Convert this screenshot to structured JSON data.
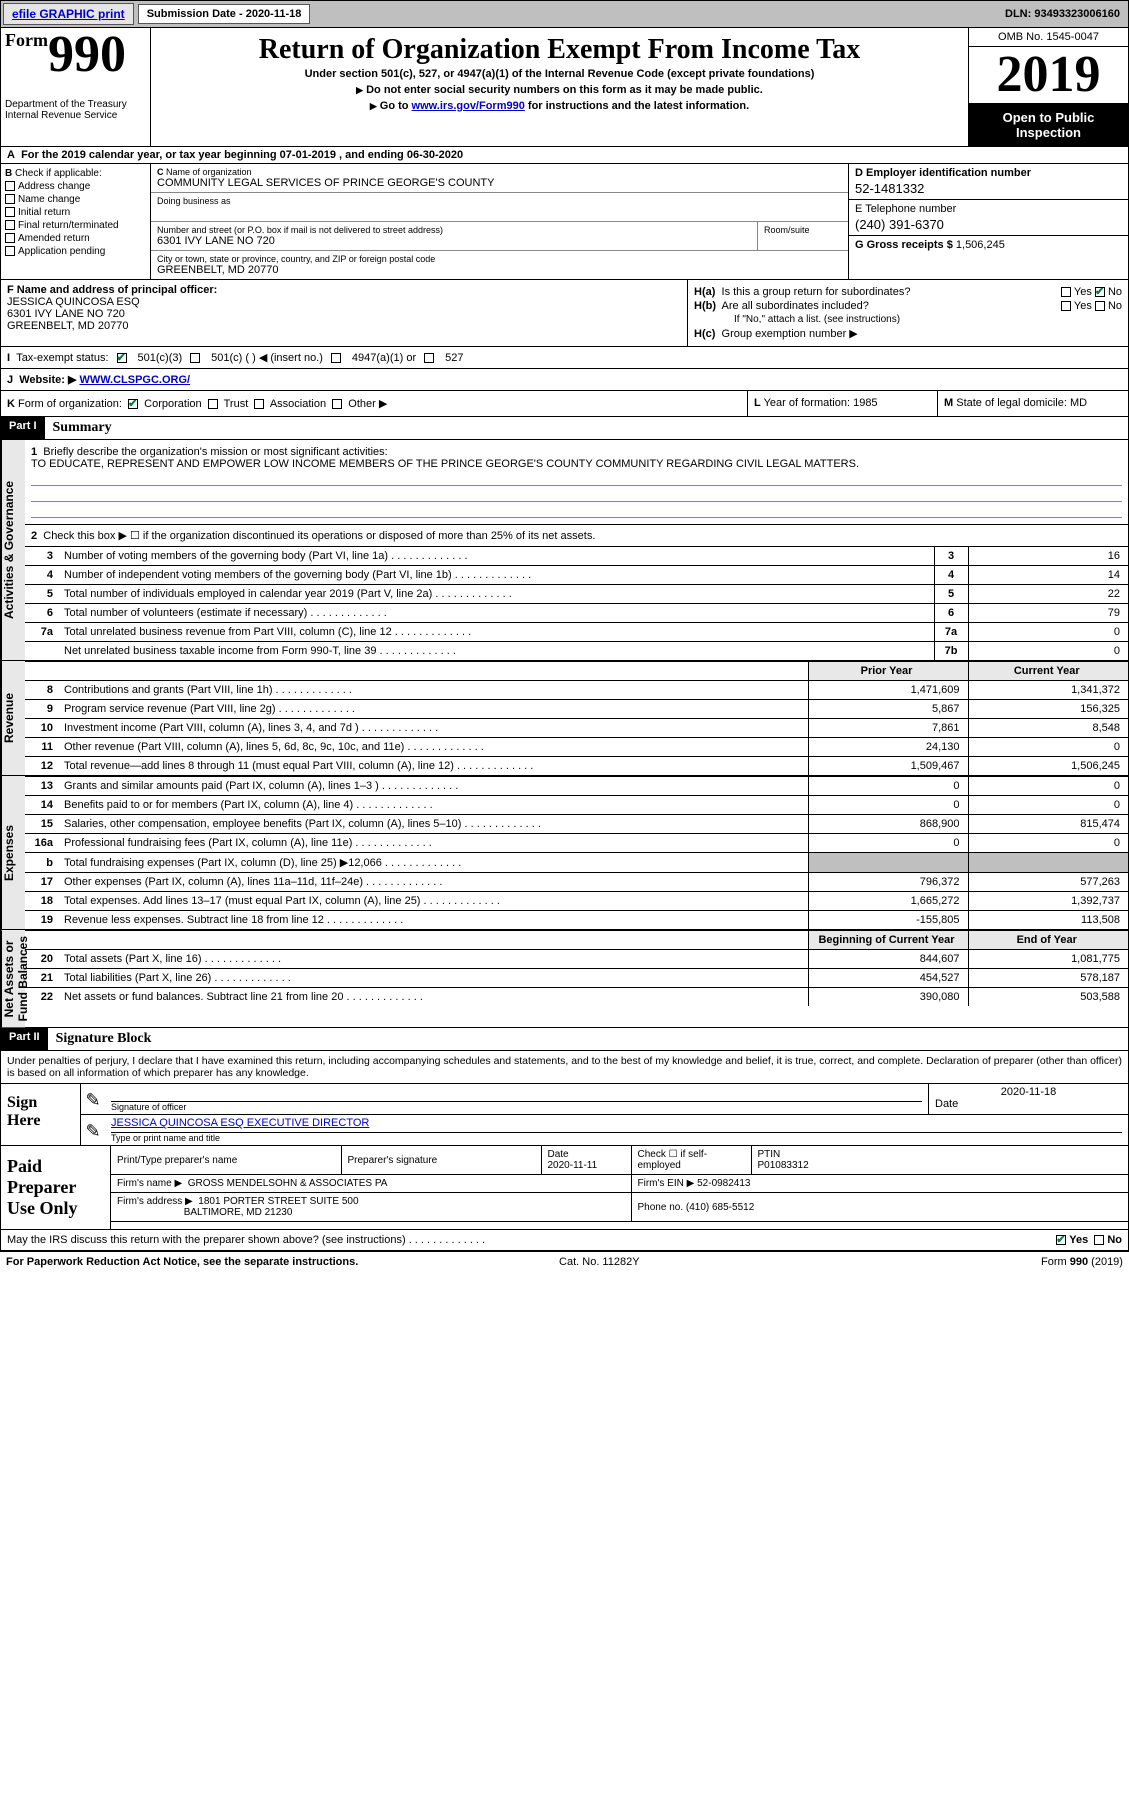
{
  "topbar": {
    "efile": "efile GRAPHIC print",
    "submission_label": "Submission Date - 2020-11-18",
    "dln": "DLN: 93493323006160"
  },
  "header": {
    "form_word": "Form",
    "form_num": "990",
    "dept": "Department of the Treasury\nInternal Revenue Service",
    "title": "Return of Organization Exempt From Income Tax",
    "sub": "Under section 501(c), 527, or 4947(a)(1) of the Internal Revenue Code (except private foundations)",
    "line1": "Do not enter social security numbers on this form as it may be made public.",
    "line2_pre": "Go to ",
    "line2_link": "www.irs.gov/Form990",
    "line2_post": " for instructions and the latest information.",
    "omb": "OMB No. 1545-0047",
    "year": "2019",
    "open": "Open to Public Inspection"
  },
  "tax_year": "For the 2019 calendar year, or tax year beginning 07-01-2019   , and ending 06-30-2020",
  "checkB": {
    "label": "Check if applicable:",
    "addr": "Address change",
    "name": "Name change",
    "init": "Initial return",
    "final": "Final return/terminated",
    "amend": "Amended return",
    "app": "Application pending"
  },
  "org": {
    "c_label": "Name of organization",
    "name": "COMMUNITY LEGAL SERVICES OF PRINCE GEORGE'S COUNTY",
    "dba_label": "Doing business as",
    "addr_label": "Number and street (or P.O. box if mail is not delivered to street address)",
    "addr": "6301 IVY LANE NO 720",
    "room_label": "Room/suite",
    "city_label": "City or town, state or province, country, and ZIP or foreign postal code",
    "city": "GREENBELT, MD  20770"
  },
  "boxDEG": {
    "d_label": "D Employer identification number",
    "ein": "52-1481332",
    "e_label": "E Telephone number",
    "phone": "(240) 391-6370",
    "g_label": "G Gross receipts $ ",
    "gross": "1,506,245"
  },
  "boxF": {
    "label": "F  Name and address of principal officer:",
    "name": "JESSICA QUINCOSA ESQ",
    "addr1": "6301 IVY LANE NO 720",
    "addr2": "GREENBELT, MD  20770"
  },
  "boxH": {
    "ha": "Is this a group return for subordinates?",
    "hb": "Are all subordinates included?",
    "hnote": "If \"No,\" attach a list. (see instructions)",
    "hc": "Group exemption number ▶",
    "yes": "Yes",
    "no": "No"
  },
  "status": {
    "label": "Tax-exempt status:",
    "c3": "501(c)(3)",
    "c": "501(c) (  ) ◀ (insert no.)",
    "a1": "4947(a)(1) or",
    "s527": "527"
  },
  "website": {
    "label": "Website: ▶ ",
    "url": "WWW.CLSPGC.ORG/"
  },
  "klm": {
    "k": "Form of organization:",
    "corp": "Corporation",
    "trust": "Trust",
    "assoc": "Association",
    "other": "Other ▶",
    "l_label": "Year of formation: ",
    "l_val": "1985",
    "m_label": "State of legal domicile: ",
    "m_val": "MD"
  },
  "parts": {
    "p1": "Part I",
    "p1_title": "Summary",
    "p2": "Part II",
    "p2_title": "Signature Block"
  },
  "vtabs": {
    "ag": "Activities & Governance",
    "rev": "Revenue",
    "exp": "Expenses",
    "na": "Net Assets or\nFund Balances"
  },
  "summary": {
    "q1": "Briefly describe the organization's mission or most significant activities:",
    "mission": "TO EDUCATE, REPRESENT AND EMPOWER LOW INCOME MEMBERS OF THE PRINCE GEORGE'S COUNTY COMMUNITY REGARDING CIVIL LEGAL MATTERS.",
    "q2": "Check this box ▶ ☐  if the organization discontinued its operations or disposed of more than 25% of its net assets.",
    "prior": "Prior Year",
    "current": "Current Year",
    "begin": "Beginning of Current Year",
    "end": "End of Year",
    "rows_ag": [
      {
        "n": "3",
        "t": "Number of voting members of the governing body (Part VI, line 1a)",
        "b": "3",
        "v": "16"
      },
      {
        "n": "4",
        "t": "Number of independent voting members of the governing body (Part VI, line 1b)",
        "b": "4",
        "v": "14"
      },
      {
        "n": "5",
        "t": "Total number of individuals employed in calendar year 2019 (Part V, line 2a)",
        "b": "5",
        "v": "22"
      },
      {
        "n": "6",
        "t": "Total number of volunteers (estimate if necessary)",
        "b": "6",
        "v": "79"
      },
      {
        "n": "7a",
        "t": "Total unrelated business revenue from Part VIII, column (C), line 12",
        "b": "7a",
        "v": "0"
      },
      {
        "n": "",
        "t": "Net unrelated business taxable income from Form 990-T, line 39",
        "b": "7b",
        "v": "0"
      }
    ],
    "rows_rev": [
      {
        "n": "8",
        "t": "Contributions and grants (Part VIII, line 1h)",
        "p": "1,471,609",
        "c": "1,341,372"
      },
      {
        "n": "9",
        "t": "Program service revenue (Part VIII, line 2g)",
        "p": "5,867",
        "c": "156,325"
      },
      {
        "n": "10",
        "t": "Investment income (Part VIII, column (A), lines 3, 4, and 7d )",
        "p": "7,861",
        "c": "8,548"
      },
      {
        "n": "11",
        "t": "Other revenue (Part VIII, column (A), lines 5, 6d, 8c, 9c, 10c, and 11e)",
        "p": "24,130",
        "c": "0"
      },
      {
        "n": "12",
        "t": "Total revenue—add lines 8 through 11 (must equal Part VIII, column (A), line 12)",
        "p": "1,509,467",
        "c": "1,506,245"
      }
    ],
    "rows_exp": [
      {
        "n": "13",
        "t": "Grants and similar amounts paid (Part IX, column (A), lines 1–3 )",
        "p": "0",
        "c": "0"
      },
      {
        "n": "14",
        "t": "Benefits paid to or for members (Part IX, column (A), line 4)",
        "p": "0",
        "c": "0"
      },
      {
        "n": "15",
        "t": "Salaries, other compensation, employee benefits (Part IX, column (A), lines 5–10)",
        "p": "868,900",
        "c": "815,474"
      },
      {
        "n": "16a",
        "t": "Professional fundraising fees (Part IX, column (A), line 11e)",
        "p": "0",
        "c": "0"
      },
      {
        "n": "b",
        "t": "Total fundraising expenses (Part IX, column (D), line 25) ▶12,066",
        "p": "",
        "c": "",
        "shaded": true
      },
      {
        "n": "17",
        "t": "Other expenses (Part IX, column (A), lines 11a–11d, 11f–24e)",
        "p": "796,372",
        "c": "577,263"
      },
      {
        "n": "18",
        "t": "Total expenses. Add lines 13–17 (must equal Part IX, column (A), line 25)",
        "p": "1,665,272",
        "c": "1,392,737"
      },
      {
        "n": "19",
        "t": "Revenue less expenses. Subtract line 18 from line 12",
        "p": "-155,805",
        "c": "113,508"
      }
    ],
    "rows_na": [
      {
        "n": "20",
        "t": "Total assets (Part X, line 16)",
        "p": "844,607",
        "c": "1,081,775"
      },
      {
        "n": "21",
        "t": "Total liabilities (Part X, line 26)",
        "p": "454,527",
        "c": "578,187"
      },
      {
        "n": "22",
        "t": "Net assets or fund balances. Subtract line 21 from line 20",
        "p": "390,080",
        "c": "503,588"
      }
    ]
  },
  "sig": {
    "intro": "Under penalties of perjury, I declare that I have examined this return, including accompanying schedules and statements, and to the best of my knowledge and belief, it is true, correct, and complete. Declaration of preparer (other than officer) is based on all information of which preparer has any knowledge.",
    "sign_here": "Sign Here",
    "sig_of_officer": "Signature of officer",
    "date_label": "Date",
    "sig_date": "2020-11-18",
    "officer_name": "JESSICA QUINCOSA ESQ  EXECUTIVE DIRECTOR",
    "type_name": "Type or print name and title"
  },
  "preparer": {
    "title": "Paid Preparer Use Only",
    "h_name": "Print/Type preparer's name",
    "h_sig": "Preparer's signature",
    "h_date": "Date",
    "date": "2020-11-11",
    "check": "Check ☐ if self-employed",
    "ptin_label": "PTIN",
    "ptin": "P01083312",
    "firm_name_label": "Firm's name    ▶",
    "firm_name": "GROSS MENDELSOHN & ASSOCIATES PA",
    "firm_ein_label": "Firm's EIN ▶ ",
    "firm_ein": "52-0982413",
    "firm_addr_label": "Firm's address ▶",
    "firm_addr1": "1801 PORTER STREET SUITE 500",
    "firm_addr2": "BALTIMORE, MD  21230",
    "phone_label": "Phone no. ",
    "phone": "(410) 685-5512"
  },
  "discuss": {
    "q": "May the IRS discuss this return with the preparer shown above? (see instructions)",
    "yes": "Yes",
    "no": "No"
  },
  "footer": {
    "left": "For Paperwork Reduction Act Notice, see the separate instructions.",
    "mid": "Cat. No. 11282Y",
    "right_pre": "Form ",
    "right_form": "990",
    "right_post": " (2019)"
  },
  "labels": {
    "b": "B",
    "c": "C",
    "i": "I",
    "j": "J",
    "k": "K",
    "l": "L",
    "m": "M",
    "a": "A",
    "ha": "H(a)",
    "hb": "H(b)",
    "hc": "H(c)"
  }
}
